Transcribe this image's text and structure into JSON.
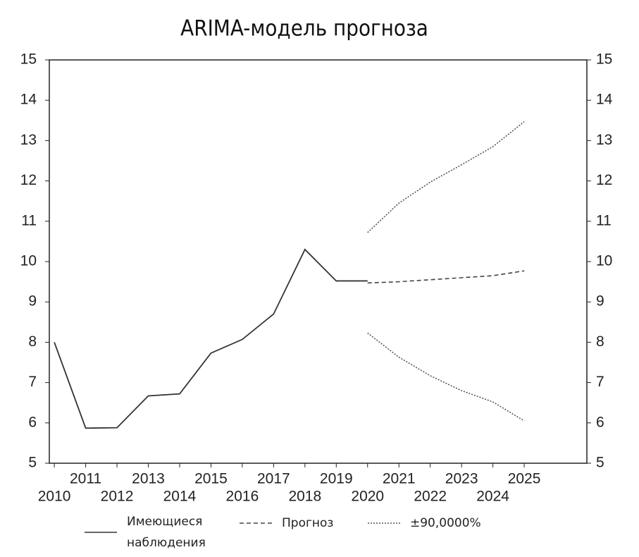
{
  "chart_data": {
    "type": "line",
    "title": "ARIMA-модель прогноза",
    "xlim": [
      2009.84,
      2027
    ],
    "xticks": [
      2010,
      2011,
      2012,
      2013,
      2014,
      2015,
      2016,
      2017,
      2018,
      2019,
      2020,
      2021,
      2022,
      2023,
      2024,
      2025
    ],
    "ylim": [
      5,
      15
    ],
    "yticks": [
      5,
      6,
      7,
      8,
      9,
      10,
      11,
      12,
      13,
      14,
      15
    ],
    "y2lim": [
      5,
      15
    ],
    "y2ticks": [
      5,
      6,
      7,
      8,
      9,
      10,
      11,
      12,
      13,
      14,
      15
    ],
    "series": [
      {
        "name": "Имеющиеся наблюдения",
        "color": "#333333",
        "style": "solid",
        "x": [
          2010,
          2011,
          2012,
          2013,
          2014,
          2015,
          2016,
          2017,
          2018,
          2019,
          2020
        ],
        "values": [
          8.0,
          5.87,
          5.88,
          6.67,
          6.72,
          7.73,
          8.07,
          8.7,
          10.3,
          9.52,
          9.52
        ]
      },
      {
        "name": "Прогноз",
        "color": "#444444",
        "style": "dashed",
        "x": [
          2020,
          2021,
          2022,
          2023,
          2024,
          2025
        ],
        "values": [
          9.47,
          9.5,
          9.55,
          9.6,
          9.65,
          9.77
        ]
      },
      {
        "name": "±90,0000%",
        "color": "#555555",
        "style": "dotted",
        "x": [
          2020,
          2021,
          2022,
          2023,
          2024,
          2025
        ],
        "upper": [
          10.72,
          11.45,
          11.97,
          12.4,
          12.85,
          13.47
        ],
        "lower": [
          8.23,
          7.63,
          7.17,
          6.8,
          6.52,
          6.05
        ]
      }
    ]
  }
}
